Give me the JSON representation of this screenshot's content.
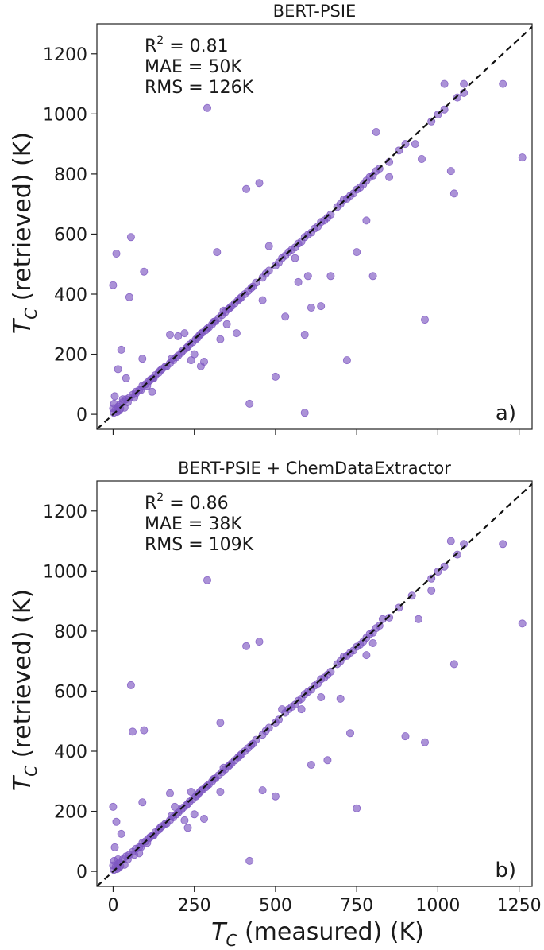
{
  "colors": {
    "point": "#7e57c2",
    "diagonal": "#111111",
    "axis": "#222222"
  },
  "axis_labels": {
    "x_symbol": "T",
    "x_sub": "C",
    "x_rest": " (measured) (K)",
    "y_symbol": "T",
    "y_sub": "C",
    "y_rest": " (retrieved) (K)"
  },
  "chart_data": [
    {
      "type": "scatter",
      "title": "BERT-PSIE",
      "panel_label": "a)",
      "stats": {
        "r2_prefix": "R",
        "r2_exp": "2",
        "r2_value": " = 0.81",
        "mae": "MAE = 50K",
        "rms": "RMS = 126K"
      },
      "xlim": [
        -50,
        1290
      ],
      "ylim": [
        -50,
        1300
      ],
      "xticks": [
        0,
        250,
        500,
        750,
        1000,
        1250
      ],
      "show_xtick_labels": false,
      "yticks": [
        0,
        200,
        400,
        600,
        800,
        1000,
        1200
      ],
      "ytick_labels": [
        "0",
        "200",
        "400",
        "600",
        "800",
        "1000",
        "1200"
      ],
      "diagonal": true,
      "points": [
        [
          2,
          5
        ],
        [
          8,
          15
        ],
        [
          15,
          25
        ],
        [
          20,
          30
        ],
        [
          30,
          40
        ],
        [
          40,
          50
        ],
        [
          50,
          55
        ],
        [
          60,
          65
        ],
        [
          70,
          75
        ],
        [
          80,
          80
        ],
        [
          90,
          95
        ],
        [
          100,
          100
        ],
        [
          110,
          110
        ],
        [
          120,
          118
        ],
        [
          130,
          130
        ],
        [
          140,
          138
        ],
        [
          150,
          150
        ],
        [
          160,
          158
        ],
        [
          175,
          170
        ],
        [
          185,
          180
        ],
        [
          200,
          195
        ],
        [
          210,
          205
        ],
        [
          225,
          220
        ],
        [
          235,
          232
        ],
        [
          245,
          240
        ],
        [
          255,
          250
        ],
        [
          265,
          262
        ],
        [
          275,
          272
        ],
        [
          285,
          280
        ],
        [
          295,
          290
        ],
        [
          305,
          300
        ],
        [
          315,
          310
        ],
        [
          325,
          320
        ],
        [
          335,
          330
        ],
        [
          345,
          340
        ],
        [
          355,
          350
        ],
        [
          365,
          360
        ],
        [
          375,
          370
        ],
        [
          385,
          380
        ],
        [
          395,
          390
        ],
        [
          405,
          400
        ],
        [
          415,
          410
        ],
        [
          425,
          420
        ],
        [
          440,
          438
        ],
        [
          470,
          468
        ],
        [
          500,
          495
        ],
        [
          530,
          528
        ],
        [
          550,
          548
        ],
        [
          570,
          568
        ],
        [
          580,
          575
        ],
        [
          590,
          590
        ],
        [
          600,
          598
        ],
        [
          620,
          618
        ],
        [
          640,
          640
        ],
        [
          660,
          655
        ],
        [
          690,
          690
        ],
        [
          700,
          700
        ],
        [
          720,
          718
        ],
        [
          740,
          735
        ],
        [
          760,
          755
        ],
        [
          780,
          778
        ],
        [
          800,
          795
        ],
        [
          820,
          818
        ],
        [
          850,
          840
        ],
        [
          880,
          878
        ],
        [
          900,
          900
        ],
        [
          980,
          975
        ],
        [
          1000,
          998
        ],
        [
          1020,
          1015
        ],
        [
          1060,
          1055
        ],
        [
          0,
          430
        ],
        [
          5,
          60
        ],
        [
          10,
          535
        ],
        [
          15,
          150
        ],
        [
          25,
          215
        ],
        [
          30,
          50
        ],
        [
          40,
          120
        ],
        [
          50,
          390
        ],
        [
          55,
          590
        ],
        [
          70,
          70
        ],
        [
          90,
          185
        ],
        [
          95,
          475
        ],
        [
          120,
          75
        ],
        [
          175,
          265
        ],
        [
          200,
          260
        ],
        [
          220,
          270
        ],
        [
          240,
          180
        ],
        [
          250,
          200
        ],
        [
          270,
          160
        ],
        [
          280,
          175
        ],
        [
          290,
          1020
        ],
        [
          320,
          540
        ],
        [
          330,
          250
        ],
        [
          350,
          300
        ],
        [
          380,
          270
        ],
        [
          410,
          750
        ],
        [
          420,
          35
        ],
        [
          450,
          770
        ],
        [
          460,
          380
        ],
        [
          480,
          560
        ],
        [
          500,
          125
        ],
        [
          520,
          520
        ],
        [
          530,
          325
        ],
        [
          560,
          520
        ],
        [
          570,
          440
        ],
        [
          590,
          5
        ],
        [
          590,
          265
        ],
        [
          600,
          460
        ],
        [
          610,
          355
        ],
        [
          640,
          360
        ],
        [
          670,
          460
        ],
        [
          720,
          180
        ],
        [
          750,
          540
        ],
        [
          780,
          645
        ],
        [
          800,
          460
        ],
        [
          810,
          940
        ],
        [
          850,
          790
        ],
        [
          930,
          900
        ],
        [
          950,
          850
        ],
        [
          960,
          315
        ],
        [
          1020,
          1100
        ],
        [
          1040,
          810
        ],
        [
          1050,
          735
        ],
        [
          1080,
          1070
        ],
        [
          1080,
          1100
        ],
        [
          1200,
          1100
        ],
        [
          1260,
          855
        ],
        [
          0,
          20
        ],
        [
          3,
          35
        ],
        [
          12,
          8
        ],
        [
          18,
          12
        ],
        [
          22,
          18
        ],
        [
          35,
          22
        ],
        [
          45,
          40
        ],
        [
          65,
          55
        ],
        [
          85,
          80
        ],
        [
          105,
          95
        ],
        [
          115,
          115
        ],
        [
          125,
          120
        ],
        [
          145,
          145
        ],
        [
          165,
          160
        ],
        [
          180,
          185
        ],
        [
          195,
          190
        ],
        [
          215,
          212
        ],
        [
          230,
          225
        ],
        [
          260,
          255
        ],
        [
          270,
          268
        ],
        [
          290,
          285
        ],
        [
          310,
          308
        ],
        [
          340,
          345
        ],
        [
          360,
          355
        ],
        [
          390,
          385
        ],
        [
          430,
          425
        ],
        [
          460,
          455
        ],
        [
          480,
          478
        ],
        [
          510,
          505
        ],
        [
          540,
          540
        ],
        [
          560,
          555
        ],
        [
          610,
          605
        ],
        [
          630,
          625
        ],
        [
          650,
          645
        ],
        [
          670,
          665
        ],
        [
          710,
          715
        ],
        [
          730,
          728
        ],
        [
          750,
          748
        ],
        [
          770,
          765
        ],
        [
          790,
          790
        ],
        [
          810,
          810
        ]
      ]
    },
    {
      "type": "scatter",
      "title": "BERT-PSIE + ChemDataExtractor",
      "panel_label": "b)",
      "stats": {
        "r2_prefix": "R",
        "r2_exp": "2",
        "r2_value": " = 0.86",
        "mae": "MAE = 38K",
        "rms": "RMS = 109K"
      },
      "xlim": [
        -50,
        1290
      ],
      "ylim": [
        -50,
        1300
      ],
      "xticks": [
        0,
        250,
        500,
        750,
        1000,
        1250
      ],
      "show_xtick_labels": true,
      "xtick_labels": [
        "0",
        "250",
        "500",
        "750",
        "1000",
        "1250"
      ],
      "yticks": [
        0,
        200,
        400,
        600,
        800,
        1000,
        1200
      ],
      "ytick_labels": [
        "0",
        "200",
        "400",
        "600",
        "800",
        "1000",
        "1200"
      ],
      "diagonal": true,
      "points": [
        [
          2,
          5
        ],
        [
          8,
          15
        ],
        [
          15,
          25
        ],
        [
          20,
          30
        ],
        [
          30,
          40
        ],
        [
          40,
          50
        ],
        [
          50,
          55
        ],
        [
          60,
          65
        ],
        [
          70,
          75
        ],
        [
          80,
          80
        ],
        [
          90,
          95
        ],
        [
          100,
          100
        ],
        [
          110,
          110
        ],
        [
          120,
          118
        ],
        [
          130,
          130
        ],
        [
          140,
          138
        ],
        [
          150,
          150
        ],
        [
          160,
          158
        ],
        [
          175,
          170
        ],
        [
          185,
          180
        ],
        [
          200,
          195
        ],
        [
          210,
          205
        ],
        [
          225,
          220
        ],
        [
          235,
          232
        ],
        [
          245,
          240
        ],
        [
          255,
          250
        ],
        [
          265,
          262
        ],
        [
          275,
          272
        ],
        [
          285,
          280
        ],
        [
          295,
          290
        ],
        [
          305,
          300
        ],
        [
          315,
          310
        ],
        [
          325,
          320
        ],
        [
          335,
          330
        ],
        [
          345,
          340
        ],
        [
          355,
          350
        ],
        [
          365,
          360
        ],
        [
          375,
          370
        ],
        [
          385,
          380
        ],
        [
          395,
          390
        ],
        [
          405,
          400
        ],
        [
          415,
          410
        ],
        [
          425,
          420
        ],
        [
          440,
          438
        ],
        [
          470,
          468
        ],
        [
          500,
          495
        ],
        [
          530,
          528
        ],
        [
          550,
          548
        ],
        [
          570,
          568
        ],
        [
          580,
          575
        ],
        [
          590,
          590
        ],
        [
          600,
          598
        ],
        [
          620,
          618
        ],
        [
          640,
          640
        ],
        [
          660,
          655
        ],
        [
          690,
          690
        ],
        [
          700,
          700
        ],
        [
          720,
          718
        ],
        [
          740,
          735
        ],
        [
          760,
          755
        ],
        [
          780,
          778
        ],
        [
          800,
          795
        ],
        [
          820,
          818
        ],
        [
          850,
          845
        ],
        [
          880,
          878
        ],
        [
          920,
          918
        ],
        [
          980,
          975
        ],
        [
          1000,
          998
        ],
        [
          1020,
          1015
        ],
        [
          1060,
          1055
        ],
        [
          0,
          215
        ],
        [
          5,
          80
        ],
        [
          10,
          165
        ],
        [
          15,
          40
        ],
        [
          25,
          125
        ],
        [
          55,
          620
        ],
        [
          60,
          465
        ],
        [
          80,
          60
        ],
        [
          90,
          230
        ],
        [
          95,
          470
        ],
        [
          175,
          260
        ],
        [
          190,
          215
        ],
        [
          220,
          170
        ],
        [
          230,
          145
        ],
        [
          240,
          265
        ],
        [
          250,
          190
        ],
        [
          280,
          175
        ],
        [
          290,
          970
        ],
        [
          330,
          495
        ],
        [
          330,
          265
        ],
        [
          410,
          750
        ],
        [
          420,
          35
        ],
        [
          450,
          765
        ],
        [
          460,
          270
        ],
        [
          500,
          250
        ],
        [
          520,
          540
        ],
        [
          580,
          540
        ],
        [
          610,
          355
        ],
        [
          640,
          580
        ],
        [
          660,
          370
        ],
        [
          700,
          575
        ],
        [
          730,
          460
        ],
        [
          750,
          210
        ],
        [
          780,
          720
        ],
        [
          800,
          760
        ],
        [
          830,
          840
        ],
        [
          900,
          450
        ],
        [
          940,
          840
        ],
        [
          960,
          430
        ],
        [
          980,
          935
        ],
        [
          1040,
          1100
        ],
        [
          1050,
          690
        ],
        [
          1080,
          1090
        ],
        [
          1200,
          1090
        ],
        [
          1260,
          825
        ],
        [
          0,
          20
        ],
        [
          3,
          35
        ],
        [
          12,
          8
        ],
        [
          18,
          12
        ],
        [
          22,
          18
        ],
        [
          35,
          22
        ],
        [
          45,
          40
        ],
        [
          65,
          55
        ],
        [
          85,
          80
        ],
        [
          105,
          95
        ],
        [
          115,
          115
        ],
        [
          125,
          120
        ],
        [
          145,
          145
        ],
        [
          165,
          160
        ],
        [
          180,
          185
        ],
        [
          195,
          190
        ],
        [
          215,
          212
        ],
        [
          230,
          225
        ],
        [
          260,
          255
        ],
        [
          270,
          268
        ],
        [
          290,
          285
        ],
        [
          310,
          308
        ],
        [
          340,
          345
        ],
        [
          360,
          355
        ],
        [
          390,
          385
        ],
        [
          430,
          425
        ],
        [
          460,
          455
        ],
        [
          480,
          478
        ],
        [
          510,
          505
        ],
        [
          540,
          540
        ],
        [
          560,
          555
        ],
        [
          610,
          605
        ],
        [
          630,
          625
        ],
        [
          650,
          645
        ],
        [
          670,
          665
        ],
        [
          710,
          715
        ],
        [
          730,
          728
        ],
        [
          750,
          748
        ],
        [
          770,
          765
        ],
        [
          790,
          790
        ],
        [
          810,
          810
        ]
      ]
    }
  ]
}
